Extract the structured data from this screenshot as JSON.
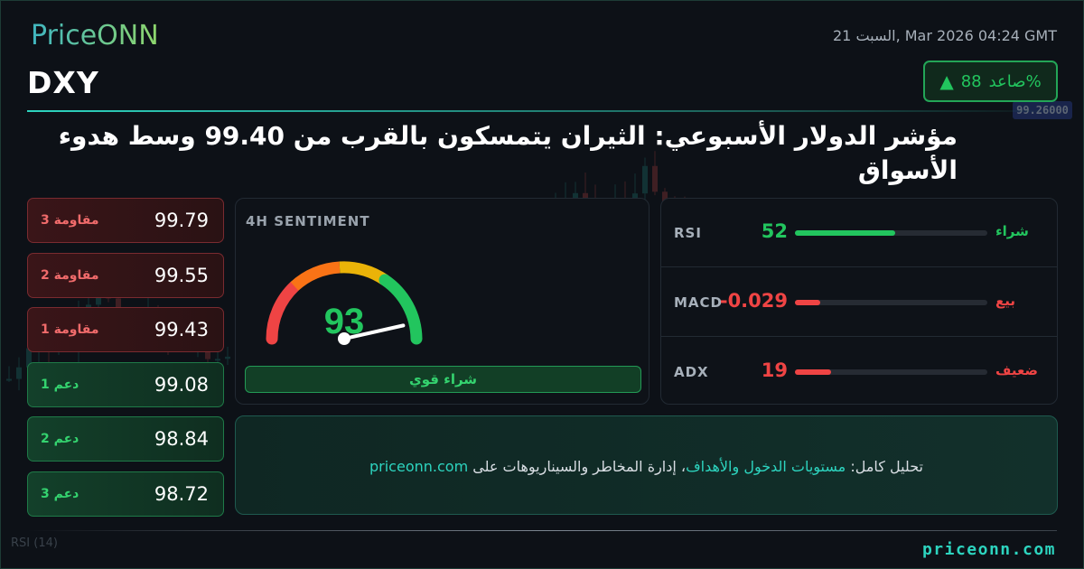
{
  "header": {
    "logo": "PriceONN",
    "datetime": "21 السبت, Mar 2026 04:24 GMT",
    "symbol": "DXY",
    "trend_badge": {
      "arrow_icon": "triangle-up-icon",
      "value": "88",
      "label": "صاعد%"
    },
    "headline": "مؤشر الدولار الأسبوعي: الثيران يتمسكون بالقرب من 99.40 وسط هدوء الأسواق"
  },
  "levels": [
    {
      "label": "مقاومة 3",
      "price": "99.79",
      "type": "resistance"
    },
    {
      "label": "مقاومة 2",
      "price": "99.55",
      "type": "resistance"
    },
    {
      "label": "مقاومة 1",
      "price": "99.43",
      "type": "resistance"
    },
    {
      "label": "دعم 1",
      "price": "99.08",
      "type": "support"
    },
    {
      "label": "دعم 2",
      "price": "98.84",
      "type": "support"
    },
    {
      "label": "دعم 3",
      "price": "98.72",
      "type": "support"
    }
  ],
  "sentiment": {
    "title": "4H SENTIMENT",
    "score": "93",
    "score_value": 93,
    "verdict": "شراء قوي"
  },
  "indicators": [
    {
      "name": "RSI",
      "value": "52",
      "signal": "شراء",
      "fill_percent": 52,
      "color": "#22c55e"
    },
    {
      "name": "MACD",
      "value": "-0.029",
      "signal": "بيع",
      "fill_percent": 13,
      "color": "#ef4444"
    },
    {
      "name": "ADX",
      "value": "19",
      "signal": "ضعيف",
      "fill_percent": 19,
      "color": "#ef4444"
    }
  ],
  "promo": {
    "prefix": "تحليل كامل: ",
    "accent": "مستويات الدخول والأهداف",
    "middle": "، إدارة المخاطر والسيناريوهات على ",
    "site": "priceonn.com"
  },
  "footer": {
    "url": "priceonn.com"
  },
  "background_chart": {
    "rsi_label": "RSI",
    "rsi_period": "(14)",
    "price_tag": "99.26000"
  },
  "colors": {
    "accent": "#2dd4bf",
    "bull": "#22c55e",
    "bear": "#ef4444"
  }
}
